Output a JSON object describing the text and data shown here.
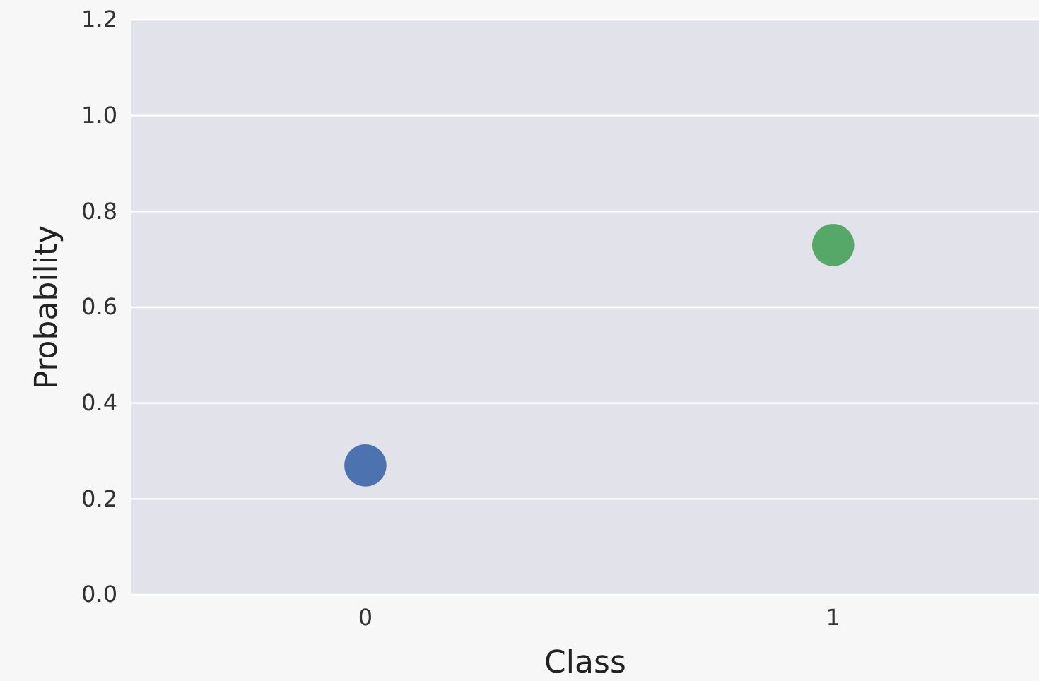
{
  "chart_data": {
    "type": "scatter",
    "xlabel": "Class",
    "ylabel": "Probability",
    "x": [
      0,
      1
    ],
    "values": [
      0.27,
      0.73
    ],
    "colors": [
      "#4c72b0",
      "#55a868"
    ],
    "xlim": [
      -0.5,
      1.44
    ],
    "xticks": [
      0,
      1
    ],
    "ylim": [
      0,
      1.2
    ],
    "yticks": [
      {
        "value": 0,
        "label": "0.0"
      },
      {
        "value": 0.2,
        "label": "0.2"
      },
      {
        "value": 0.4,
        "label": "0.4"
      },
      {
        "value": 0.6,
        "label": "0.6"
      },
      {
        "value": 0.8,
        "label": "0.8"
      },
      {
        "value": 1.0,
        "label": "1.0"
      },
      {
        "value": 1.2,
        "label": "1.2"
      }
    ],
    "grid": "y",
    "marker": "circle"
  }
}
